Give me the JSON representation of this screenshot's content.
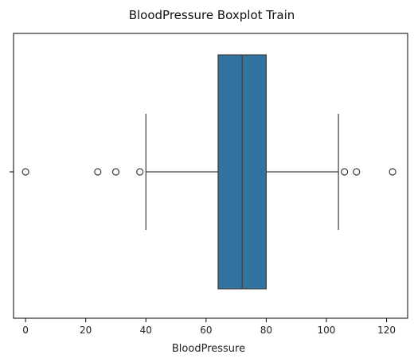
{
  "chart_data": {
    "type": "boxplot",
    "orientation": "horizontal",
    "title": "BloodPressure Boxplot Train",
    "xlabel": "BloodPressure",
    "ylabel": "",
    "xlim": [
      -4,
      127
    ],
    "xticks": [
      0,
      20,
      40,
      60,
      80,
      100,
      120
    ],
    "xtick_labels": [
      "0",
      "20",
      "40",
      "60",
      "80",
      "100",
      "120"
    ],
    "grid": false,
    "box": {
      "whisker_low": 40,
      "q1": 64,
      "median": 72,
      "q3": 80,
      "whisker_high": 104
    },
    "outliers": [
      0,
      24,
      30,
      38,
      106,
      110,
      122
    ],
    "colors": {
      "box_fill": "#3274a1",
      "lines": "#3d3d3d",
      "axes": "#000000"
    }
  }
}
